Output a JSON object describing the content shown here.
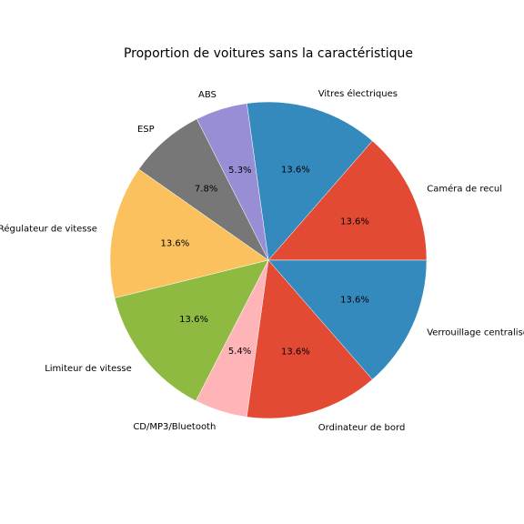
{
  "chart_data": {
    "type": "pie",
    "title": "Proportion de voitures sans la caractéristique",
    "start_angle_deg": 0,
    "direction": "counterclockwise",
    "slices": [
      {
        "label": "Caméra de recul",
        "value": 13.6,
        "pct_text": "13.6%",
        "color": "#E24A33"
      },
      {
        "label": "Vitres électriques",
        "value": 13.6,
        "pct_text": "13.6%",
        "color": "#348ABD"
      },
      {
        "label": "ABS",
        "value": 5.3,
        "pct_text": "5.3%",
        "color": "#988ED5"
      },
      {
        "label": "ESP",
        "value": 7.8,
        "pct_text": "7.8%",
        "color": "#777777"
      },
      {
        "label": "Régulateur de vitesse",
        "value": 13.6,
        "pct_text": "13.6%",
        "color": "#FBC15E"
      },
      {
        "label": "Limiteur de vitesse",
        "value": 13.6,
        "pct_text": "13.6%",
        "color": "#8EBA42"
      },
      {
        "label": "CD/MP3/Bluetooth",
        "value": 5.4,
        "pct_text": "5.4%",
        "color": "#FFB5B8"
      },
      {
        "label": "Ordinateur de bord",
        "value": 13.6,
        "pct_text": "13.6%",
        "color": "#E24A33"
      },
      {
        "label": "Verrouillage centralisé",
        "value": 13.6,
        "pct_text": "13.6%",
        "color": "#348ABD"
      }
    ]
  }
}
